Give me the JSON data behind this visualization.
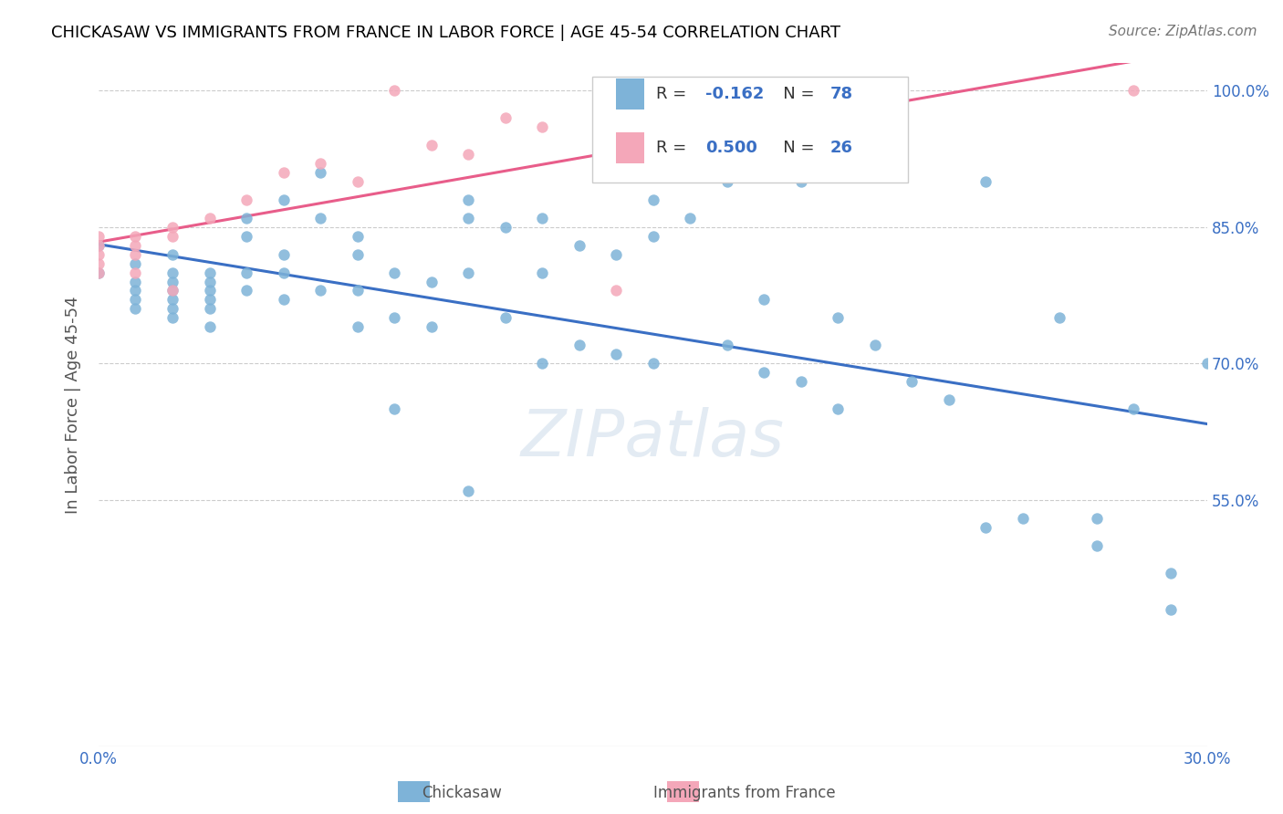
{
  "title": "CHICKASAW VS IMMIGRANTS FROM FRANCE IN LABOR FORCE | AGE 45-54 CORRELATION CHART",
  "source": "Source: ZipAtlas.com",
  "xlabel": "",
  "ylabel": "In Labor Force | Age 45-54",
  "xlim": [
    0.0,
    0.3
  ],
  "ylim": [
    0.28,
    1.03
  ],
  "yticks": [
    0.55,
    0.7,
    0.85,
    1.0
  ],
  "ytick_labels": [
    "55.0%",
    "70.0%",
    "85.0%",
    "100.0%"
  ],
  "xticks": [
    0.0,
    0.05,
    0.1,
    0.15,
    0.2,
    0.25,
    0.3
  ],
  "xtick_labels": [
    "0.0%",
    "",
    "",
    "",
    "",
    "",
    "30.0%"
  ],
  "legend_entries": [
    {
      "label": "R = -0.162   N = 78",
      "color": "#a8c4e0"
    },
    {
      "label": "R = 0.500   N = 26",
      "color": "#f4a7b9"
    }
  ],
  "blue_color": "#7eb3d8",
  "pink_color": "#f4a7b9",
  "trend_blue": "#3a6fc4",
  "trend_pink": "#e85d8a",
  "watermark": "ZIPatlas",
  "chickasaw_x": [
    0.0,
    0.0,
    0.01,
    0.01,
    0.01,
    0.01,
    0.01,
    0.02,
    0.02,
    0.02,
    0.02,
    0.02,
    0.02,
    0.02,
    0.03,
    0.03,
    0.03,
    0.03,
    0.03,
    0.03,
    0.04,
    0.04,
    0.04,
    0.04,
    0.05,
    0.05,
    0.05,
    0.05,
    0.06,
    0.06,
    0.06,
    0.07,
    0.07,
    0.07,
    0.07,
    0.08,
    0.08,
    0.08,
    0.09,
    0.09,
    0.1,
    0.1,
    0.1,
    0.1,
    0.11,
    0.11,
    0.12,
    0.12,
    0.12,
    0.13,
    0.13,
    0.14,
    0.14,
    0.15,
    0.15,
    0.15,
    0.16,
    0.17,
    0.17,
    0.18,
    0.18,
    0.19,
    0.19,
    0.2,
    0.2,
    0.21,
    0.22,
    0.23,
    0.24,
    0.24,
    0.25,
    0.26,
    0.27,
    0.27,
    0.28,
    0.29,
    0.29,
    0.3
  ],
  "chickasaw_y": [
    0.83,
    0.8,
    0.81,
    0.79,
    0.78,
    0.77,
    0.76,
    0.82,
    0.8,
    0.79,
    0.78,
    0.77,
    0.76,
    0.75,
    0.8,
    0.79,
    0.78,
    0.77,
    0.76,
    0.74,
    0.86,
    0.84,
    0.8,
    0.78,
    0.88,
    0.82,
    0.8,
    0.77,
    0.91,
    0.86,
    0.78,
    0.84,
    0.82,
    0.78,
    0.74,
    0.8,
    0.75,
    0.65,
    0.79,
    0.74,
    0.88,
    0.86,
    0.8,
    0.56,
    0.85,
    0.75,
    0.86,
    0.8,
    0.7,
    0.83,
    0.72,
    0.82,
    0.71,
    0.88,
    0.84,
    0.7,
    0.86,
    0.9,
    0.72,
    0.77,
    0.69,
    0.9,
    0.68,
    0.75,
    0.65,
    0.72,
    0.68,
    0.66,
    0.9,
    0.52,
    0.53,
    0.75,
    0.53,
    0.5,
    0.65,
    0.47,
    0.43,
    0.7
  ],
  "france_x": [
    0.0,
    0.0,
    0.0,
    0.0,
    0.0,
    0.01,
    0.01,
    0.01,
    0.01,
    0.02,
    0.02,
    0.02,
    0.03,
    0.04,
    0.05,
    0.06,
    0.07,
    0.08,
    0.09,
    0.1,
    0.11,
    0.12,
    0.14,
    0.15,
    0.21,
    0.28
  ],
  "france_y": [
    0.84,
    0.83,
    0.82,
    0.81,
    0.8,
    0.84,
    0.83,
    0.82,
    0.8,
    0.85,
    0.84,
    0.78,
    0.86,
    0.88,
    0.91,
    0.92,
    0.9,
    1.0,
    0.94,
    0.93,
    0.97,
    0.96,
    0.78,
    0.92,
    0.99,
    1.0
  ]
}
